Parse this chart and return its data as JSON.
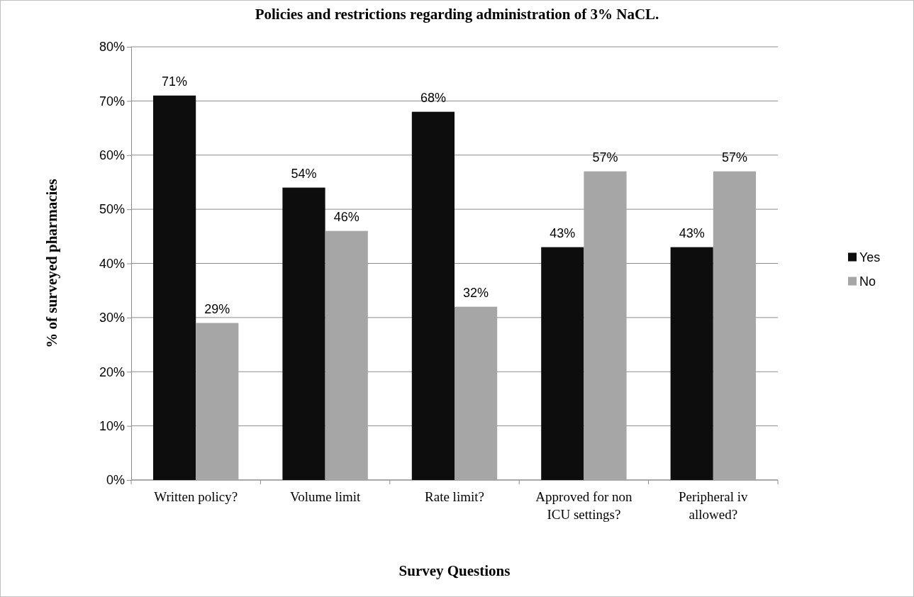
{
  "chart_data": {
    "type": "bar",
    "title": "Policies and restrictions regarding administration of 3% NaCL.",
    "xlabel": "Survey Questions",
    "ylabel": "% of surveyed pharmacies",
    "categories": [
      "Written policy?",
      "Volume limit",
      "Rate limit?",
      "Approved for non ICU settings?",
      "Peripheral iv allowed?"
    ],
    "series": [
      {
        "name": "Yes",
        "color": "#0d0d0d",
        "values": [
          71,
          54,
          68,
          43,
          43
        ],
        "value_labels": [
          "71%",
          "54%",
          "68%",
          "43%",
          "43%"
        ]
      },
      {
        "name": "No",
        "color": "#a6a6a6",
        "values": [
          29,
          46,
          32,
          57,
          57
        ],
        "value_labels": [
          "29%",
          "46%",
          "32%",
          "57%",
          "57%"
        ]
      }
    ],
    "ylim": [
      0,
      80
    ],
    "yticks": [
      {
        "value": 0,
        "label": "0%"
      },
      {
        "value": 10,
        "label": "10%"
      },
      {
        "value": 20,
        "label": "20%"
      },
      {
        "value": 30,
        "label": "30%"
      },
      {
        "value": 40,
        "label": "40%"
      },
      {
        "value": 50,
        "label": "50%"
      },
      {
        "value": 60,
        "label": "60%"
      },
      {
        "value": 70,
        "label": "70%"
      },
      {
        "value": 80,
        "label": "80%"
      }
    ],
    "grid": "y",
    "legend": "right"
  }
}
